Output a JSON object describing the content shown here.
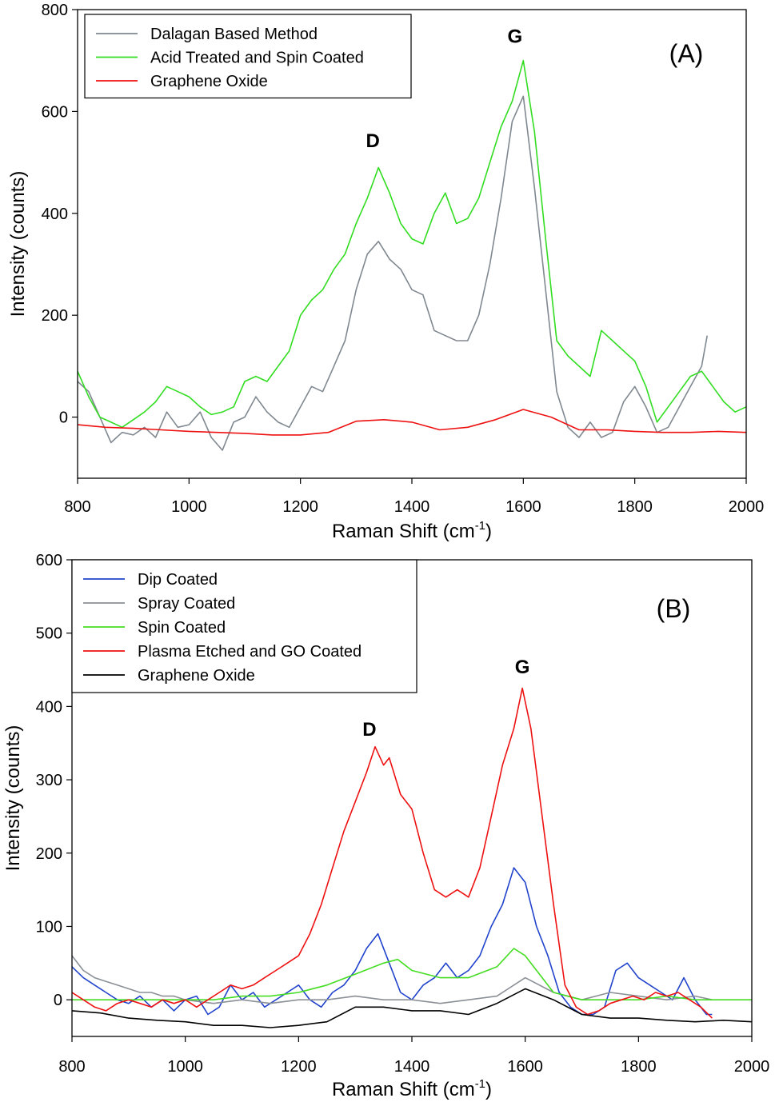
{
  "chart_data": [
    {
      "type": "line",
      "panel_label": "(A)",
      "xlabel": "Raman Shift (cm",
      "xlabel_sup": "-1",
      "xlabel_end": ")",
      "ylabel": "Intensity (counts)",
      "xlim": [
        800,
        2000
      ],
      "ylim": [
        -120,
        800
      ],
      "xticks": [
        800,
        1000,
        1200,
        1400,
        1600,
        1800,
        2000
      ],
      "yticks": [
        0,
        200,
        400,
        600,
        800
      ],
      "legend_position": "top-left",
      "annotations": [
        {
          "text": "D",
          "x": 1330,
          "y": 530
        },
        {
          "text": "G",
          "x": 1585,
          "y": 735
        }
      ],
      "series": [
        {
          "name": "Dalagan Based Method",
          "color": "#808890",
          "x": [
            800,
            820,
            840,
            860,
            880,
            900,
            920,
            940,
            960,
            980,
            1000,
            1020,
            1040,
            1060,
            1080,
            1100,
            1120,
            1140,
            1160,
            1180,
            1200,
            1220,
            1240,
            1260,
            1280,
            1300,
            1320,
            1340,
            1360,
            1380,
            1400,
            1420,
            1440,
            1460,
            1480,
            1500,
            1520,
            1540,
            1560,
            1580,
            1600,
            1620,
            1640,
            1660,
            1680,
            1700,
            1720,
            1740,
            1760,
            1780,
            1800,
            1820,
            1840,
            1860,
            1880,
            1900,
            1920,
            1930
          ],
          "y": [
            70,
            50,
            0,
            -50,
            -30,
            -35,
            -20,
            -40,
            10,
            -20,
            -15,
            10,
            -40,
            -65,
            -10,
            0,
            40,
            10,
            -10,
            -20,
            20,
            60,
            50,
            100,
            150,
            250,
            320,
            345,
            310,
            290,
            250,
            240,
            170,
            160,
            150,
            150,
            200,
            300,
            430,
            580,
            630,
            450,
            250,
            50,
            -20,
            -40,
            -10,
            -40,
            -30,
            30,
            60,
            20,
            -30,
            -20,
            20,
            60,
            100,
            160
          ]
        },
        {
          "name": "Acid Treated and Spin Coated",
          "color": "#33dd22",
          "x": [
            800,
            820,
            840,
            860,
            880,
            900,
            920,
            940,
            960,
            980,
            1000,
            1020,
            1040,
            1060,
            1080,
            1100,
            1120,
            1140,
            1160,
            1180,
            1200,
            1220,
            1240,
            1260,
            1280,
            1300,
            1320,
            1340,
            1360,
            1380,
            1400,
            1420,
            1440,
            1460,
            1480,
            1500,
            1520,
            1540,
            1560,
            1580,
            1600,
            1620,
            1640,
            1660,
            1680,
            1700,
            1720,
            1740,
            1760,
            1780,
            1800,
            1820,
            1840,
            1860,
            1880,
            1900,
            1920,
            1940,
            1960,
            1980,
            2000
          ],
          "y": [
            90,
            40,
            0,
            -10,
            -20,
            -5,
            10,
            30,
            60,
            50,
            40,
            20,
            5,
            10,
            20,
            70,
            80,
            70,
            100,
            130,
            200,
            230,
            250,
            290,
            320,
            380,
            430,
            490,
            440,
            380,
            350,
            340,
            400,
            440,
            380,
            390,
            430,
            500,
            570,
            620,
            700,
            560,
            350,
            150,
            120,
            100,
            80,
            170,
            150,
            130,
            110,
            60,
            -10,
            20,
            50,
            80,
            90,
            60,
            30,
            10,
            20
          ]
        },
        {
          "name": "Graphene Oxide",
          "color": "#ee1111",
          "x": [
            800,
            850,
            900,
            950,
            1000,
            1050,
            1100,
            1150,
            1200,
            1250,
            1300,
            1350,
            1400,
            1450,
            1500,
            1550,
            1600,
            1650,
            1700,
            1750,
            1800,
            1850,
            1900,
            1950,
            2000
          ],
          "y": [
            -15,
            -20,
            -22,
            -25,
            -28,
            -30,
            -32,
            -35,
            -35,
            -30,
            -8,
            -5,
            -10,
            -25,
            -20,
            -5,
            15,
            0,
            -25,
            -25,
            -28,
            -30,
            -30,
            -28,
            -30
          ]
        }
      ]
    },
    {
      "type": "line",
      "panel_label": "(B)",
      "xlabel": "Raman Shift (cm",
      "xlabel_sup": "-1",
      "xlabel_end": ")",
      "ylabel": "Intensity (counts)",
      "xlim": [
        800,
        2000
      ],
      "ylim": [
        -50,
        600
      ],
      "xticks": [
        800,
        1000,
        1200,
        1400,
        1600,
        1800,
        2000
      ],
      "yticks": [
        0,
        100,
        200,
        300,
        400,
        500,
        600
      ],
      "legend_position": "top-left",
      "annotations": [
        {
          "text": "D",
          "x": 1325,
          "y": 360
        },
        {
          "text": "G",
          "x": 1595,
          "y": 445
        }
      ],
      "series": [
        {
          "name": "Dip Coated",
          "color": "#2244cc",
          "x": [
            800,
            820,
            840,
            860,
            880,
            900,
            920,
            940,
            960,
            980,
            1000,
            1020,
            1040,
            1060,
            1080,
            1100,
            1120,
            1140,
            1160,
            1180,
            1200,
            1220,
            1240,
            1260,
            1280,
            1300,
            1320,
            1340,
            1360,
            1380,
            1400,
            1420,
            1440,
            1460,
            1480,
            1500,
            1520,
            1540,
            1560,
            1580,
            1600,
            1620,
            1640,
            1660,
            1680,
            1700,
            1720,
            1740,
            1760,
            1780,
            1800,
            1820,
            1840,
            1860,
            1880,
            1900,
            1920,
            1930
          ],
          "y": [
            45,
            30,
            20,
            10,
            0,
            -5,
            5,
            -10,
            0,
            -15,
            0,
            5,
            -20,
            -10,
            20,
            0,
            10,
            -10,
            0,
            10,
            20,
            0,
            -10,
            10,
            20,
            40,
            70,
            90,
            50,
            10,
            0,
            20,
            30,
            50,
            30,
            40,
            60,
            100,
            130,
            180,
            160,
            100,
            60,
            10,
            -10,
            -20,
            -20,
            -10,
            40,
            50,
            30,
            20,
            10,
            0,
            30,
            0,
            -20,
            -20
          ]
        },
        {
          "name": "Spray Coated",
          "color": "#8a9096",
          "x": [
            800,
            820,
            840,
            860,
            880,
            900,
            920,
            940,
            960,
            980,
            1000,
            1050,
            1100,
            1150,
            1200,
            1250,
            1300,
            1350,
            1400,
            1450,
            1500,
            1550,
            1600,
            1650,
            1700,
            1750,
            1800,
            1850,
            1900,
            1930
          ],
          "y": [
            60,
            40,
            30,
            25,
            20,
            15,
            10,
            10,
            5,
            5,
            0,
            -5,
            0,
            -5,
            0,
            0,
            5,
            0,
            0,
            -5,
            0,
            5,
            30,
            10,
            0,
            10,
            5,
            0,
            5,
            0
          ]
        },
        {
          "name": "Spin Coated",
          "color": "#44dd22",
          "x": [
            800,
            850,
            900,
            950,
            1000,
            1050,
            1100,
            1150,
            1200,
            1250,
            1300,
            1350,
            1375,
            1400,
            1450,
            1500,
            1550,
            1580,
            1600,
            1650,
            1700,
            1750,
            1800,
            1850,
            1900,
            1950,
            2000
          ],
          "y": [
            0,
            0,
            0,
            0,
            0,
            0,
            5,
            5,
            10,
            20,
            35,
            50,
            55,
            40,
            30,
            30,
            45,
            70,
            60,
            10,
            0,
            0,
            0,
            5,
            0,
            0,
            0
          ]
        },
        {
          "name": "Plasma Etched and GO Coated",
          "color": "#ee1111",
          "x": [
            800,
            820,
            840,
            860,
            880,
            900,
            920,
            940,
            960,
            980,
            1000,
            1020,
            1040,
            1060,
            1080,
            1100,
            1120,
            1140,
            1160,
            1180,
            1200,
            1220,
            1240,
            1260,
            1280,
            1300,
            1320,
            1335,
            1350,
            1360,
            1380,
            1400,
            1420,
            1440,
            1460,
            1480,
            1500,
            1520,
            1540,
            1560,
            1580,
            1595,
            1610,
            1630,
            1650,
            1670,
            1690,
            1710,
            1730,
            1750,
            1770,
            1790,
            1810,
            1830,
            1850,
            1870,
            1890,
            1910,
            1930
          ],
          "y": [
            10,
            0,
            -10,
            -15,
            -5,
            0,
            -5,
            -10,
            0,
            -5,
            0,
            -10,
            0,
            10,
            20,
            15,
            20,
            30,
            40,
            50,
            60,
            90,
            130,
            180,
            230,
            270,
            310,
            345,
            320,
            330,
            280,
            260,
            200,
            150,
            140,
            150,
            140,
            180,
            250,
            320,
            370,
            425,
            370,
            250,
            130,
            20,
            -10,
            -20,
            -15,
            -5,
            0,
            5,
            0,
            10,
            5,
            10,
            0,
            -10,
            -25
          ]
        },
        {
          "name": "Graphene Oxide",
          "color": "#000000",
          "x": [
            800,
            850,
            900,
            950,
            1000,
            1050,
            1100,
            1150,
            1200,
            1250,
            1300,
            1350,
            1400,
            1450,
            1500,
            1550,
            1600,
            1650,
            1700,
            1750,
            1800,
            1850,
            1900,
            1950,
            2000
          ],
          "y": [
            -15,
            -18,
            -25,
            -28,
            -30,
            -35,
            -35,
            -38,
            -35,
            -30,
            -10,
            -10,
            -15,
            -15,
            -20,
            -5,
            15,
            0,
            -20,
            -25,
            -25,
            -28,
            -30,
            -28,
            -30
          ]
        }
      ]
    }
  ]
}
